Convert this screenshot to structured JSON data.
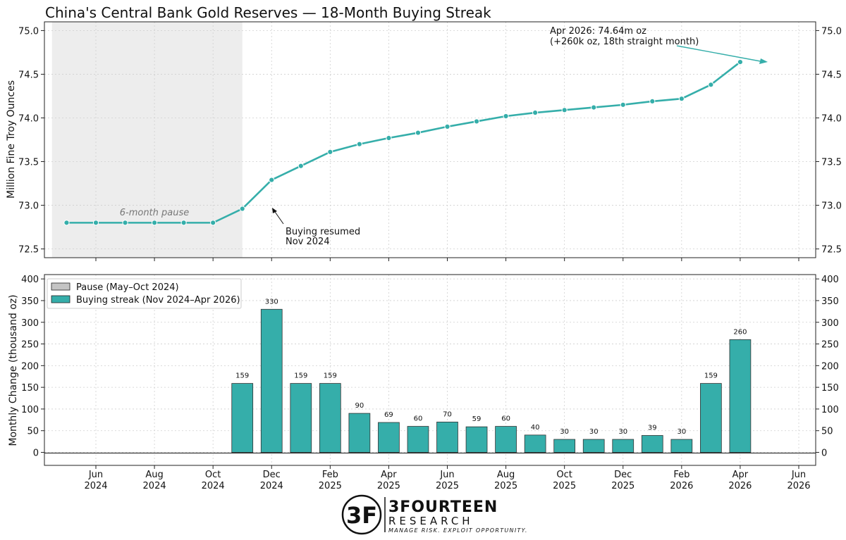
{
  "title": "China's Central Bank Gold Reserves — 18-Month Buying Streak",
  "colors": {
    "teal": "#35aeaa",
    "pause": "#ededed",
    "text": "#111111"
  },
  "chart_data": [
    {
      "type": "line",
      "ylabel": "Million Fine Troy Ounces",
      "ylim": [
        72.4,
        75.1
      ],
      "yticks": [
        "72.5",
        "73.0",
        "73.5",
        "74.0",
        "74.5",
        "75.0"
      ],
      "x": [
        "2024-05",
        "2024-06",
        "2024-07",
        "2024-08",
        "2024-09",
        "2024-10",
        "2024-11",
        "2024-12",
        "2025-01",
        "2025-02",
        "2025-03",
        "2025-04",
        "2025-05",
        "2025-06",
        "2025-07",
        "2025-08",
        "2025-09",
        "2025-10",
        "2025-11",
        "2025-12",
        "2026-01",
        "2026-02",
        "2026-03",
        "2026-04"
      ],
      "series": [
        {
          "values": [
            72.8,
            72.8,
            72.8,
            72.8,
            72.8,
            72.8,
            72.96,
            73.29,
            73.45,
            73.61,
            73.7,
            73.77,
            73.83,
            73.9,
            73.96,
            74.02,
            74.06,
            74.09,
            74.12,
            74.15,
            74.19,
            74.22,
            74.38,
            74.64
          ]
        }
      ],
      "shaded_region": {
        "from": "2024-05",
        "to": "2024-10",
        "label": "6-month pause"
      },
      "annotations": [
        {
          "line1": "Buying resumed",
          "line2": "Nov 2024"
        },
        {
          "line1": "Apr 2026: 74.64m oz",
          "line2": "(+260k oz, 18th straight month)"
        }
      ],
      "grid": true
    },
    {
      "type": "bar",
      "ylabel": "Monthly Change (thousand oz)",
      "ylim": [
        -30,
        410
      ],
      "yticks": [
        "0",
        "50",
        "100",
        "150",
        "200",
        "250",
        "300",
        "350",
        "400"
      ],
      "x": [
        "2024-11",
        "2024-12",
        "2025-01",
        "2025-02",
        "2025-03",
        "2025-04",
        "2025-05",
        "2025-06",
        "2025-07",
        "2025-08",
        "2025-09",
        "2025-10",
        "2025-11",
        "2025-12",
        "2026-01",
        "2026-02",
        "2026-03",
        "2026-04"
      ],
      "values": [
        159,
        330,
        159,
        159,
        90,
        69,
        60,
        70,
        59,
        60,
        40,
        30,
        30,
        30,
        39,
        30,
        159,
        260
      ],
      "legend": {
        "placement": "top-left",
        "items": [
          {
            "label": "Pause (May–Oct 2024)",
            "color": "#c4c4c4"
          },
          {
            "label": "Buying streak (Nov 2024–Apr 2026)",
            "color": "#35aeaa"
          }
        ]
      },
      "grid": true
    }
  ],
  "x_axis": {
    "ticks": [
      {
        "date": "2024-06",
        "month": "Jun",
        "year": "2024"
      },
      {
        "date": "2024-08",
        "month": "Aug",
        "year": "2024"
      },
      {
        "date": "2024-10",
        "month": "Oct",
        "year": "2024"
      },
      {
        "date": "2024-12",
        "month": "Dec",
        "year": "2024"
      },
      {
        "date": "2025-02",
        "month": "Feb",
        "year": "2025"
      },
      {
        "date": "2025-04",
        "month": "Apr",
        "year": "2025"
      },
      {
        "date": "2025-06",
        "month": "Jun",
        "year": "2025"
      },
      {
        "date": "2025-08",
        "month": "Aug",
        "year": "2025"
      },
      {
        "date": "2025-10",
        "month": "Oct",
        "year": "2025"
      },
      {
        "date": "2025-12",
        "month": "Dec",
        "year": "2025"
      },
      {
        "date": "2026-02",
        "month": "Feb",
        "year": "2026"
      },
      {
        "date": "2026-04",
        "month": "Apr",
        "year": "2026"
      },
      {
        "date": "2026-06",
        "month": "Jun",
        "year": "2026"
      }
    ]
  },
  "branding": {
    "logo_letters": "3F",
    "name": "3FOURTEEN",
    "sub": "RESEARCH",
    "tagline": "MANAGE RISK. EXPLOIT OPPORTUNITY."
  }
}
